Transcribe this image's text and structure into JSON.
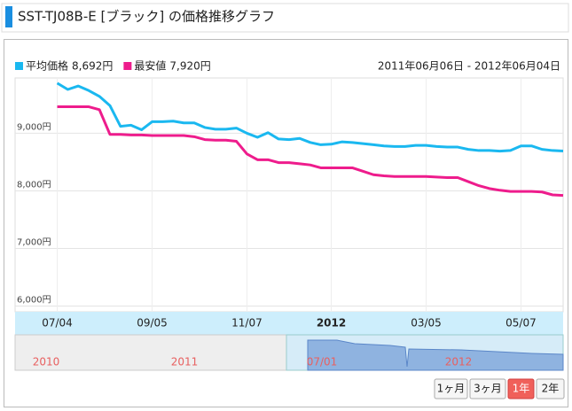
{
  "header": {
    "title": "SST-TJ08B-E [ブラック] の価格推移グラフ"
  },
  "chart_data": {
    "type": "line",
    "date_range": "2011年06月06日 - 2012年06月04日",
    "categories": [
      null,
      null,
      null,
      null,
      "07/04",
      null,
      null,
      null,
      null,
      null,
      null,
      null,
      null,
      "09/05",
      null,
      null,
      null,
      null,
      null,
      null,
      null,
      null,
      "11/07",
      null,
      null,
      null,
      null,
      null,
      null,
      null,
      "2012",
      null,
      null,
      null,
      null,
      null,
      null,
      null,
      null,
      "03/05",
      null,
      null,
      null,
      null,
      null,
      null,
      null,
      null,
      "05/07",
      null,
      null,
      null,
      null
    ],
    "series": [
      {
        "name": "平均価格",
        "legend_value": "8,692円",
        "color": "#1ab8f0",
        "values": [
          null,
          null,
          null,
          null,
          9870,
          9760,
          9820,
          9740,
          9640,
          9480,
          9120,
          9140,
          9060,
          9200,
          9200,
          9210,
          9180,
          9180,
          9100,
          9070,
          9070,
          9090,
          9000,
          8930,
          9010,
          8900,
          8890,
          8910,
          8840,
          8800,
          8810,
          8850,
          8840,
          8820,
          8800,
          8780,
          8770,
          8770,
          8790,
          8790,
          8770,
          8760,
          8760,
          8720,
          8700,
          8700,
          8690,
          8700,
          8780,
          8780,
          8720,
          8700,
          8692
        ]
      },
      {
        "name": "最安値",
        "legend_value": "7,920円",
        "color": "#ee1c8c",
        "values": [
          null,
          null,
          null,
          null,
          9460,
          9460,
          9460,
          9460,
          9410,
          8980,
          8980,
          8970,
          8970,
          8960,
          8960,
          8960,
          8960,
          8940,
          8890,
          8880,
          8880,
          8860,
          8640,
          8540,
          8540,
          8490,
          8490,
          8470,
          8450,
          8400,
          8400,
          8400,
          8400,
          8340,
          8280,
          8260,
          8250,
          8250,
          8250,
          8250,
          8240,
          8230,
          8230,
          8160,
          8090,
          8040,
          8010,
          7990,
          7990,
          7990,
          7980,
          7930,
          7920
        ]
      }
    ],
    "ylim": [
      5900,
      9960
    ],
    "yticks": [
      {
        "value": 6000,
        "label": "6,000円"
      },
      {
        "value": 7000,
        "label": "7,000円"
      },
      {
        "value": 8000,
        "label": "8,000円"
      },
      {
        "value": 9000,
        "label": "9,000円"
      }
    ],
    "grid": true
  },
  "navigator": {
    "labels": [
      "2010",
      "2011",
      "07/01",
      "2012"
    ]
  },
  "buttons": {
    "labels": [
      "1ヶ月",
      "3ヶ月",
      "1年",
      "2年"
    ],
    "active": 2
  }
}
